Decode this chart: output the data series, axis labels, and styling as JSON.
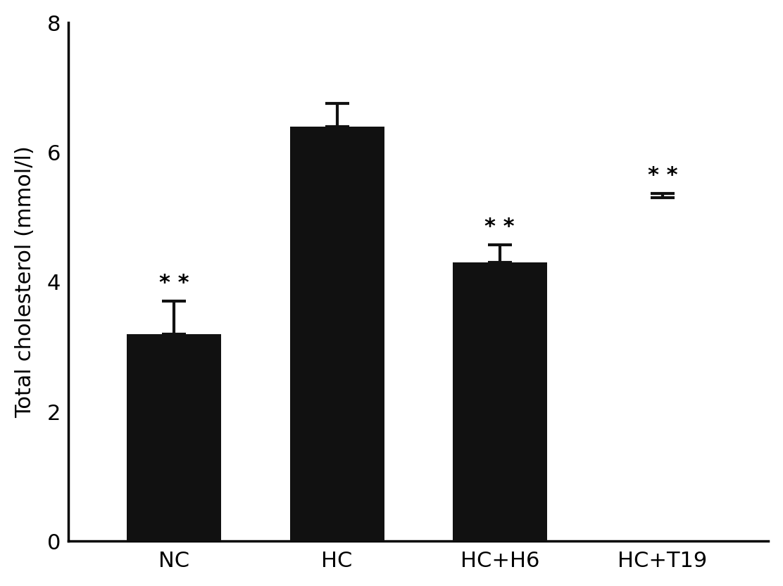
{
  "categories": [
    "NC",
    "HC",
    "HC+H6",
    "HC+T19"
  ],
  "values": [
    3.2,
    6.4,
    4.3,
    5.3
  ],
  "errors_upper": [
    0.5,
    0.35,
    0.27,
    0.07
  ],
  "bar_color": "#111111",
  "ylabel": "Total cholesterol (mmol/l)",
  "ylim": [
    0,
    8
  ],
  "yticks": [
    0,
    2,
    4,
    6,
    8
  ],
  "bar_width": 0.58,
  "significance": [
    true,
    false,
    true,
    true
  ],
  "sig_label": "* *",
  "has_bar": [
    true,
    true,
    true,
    false
  ],
  "background_color": "#ffffff",
  "figsize": [
    11.12,
    8.33
  ],
  "dpi": 100,
  "spine_linewidth": 2.5,
  "errorbar_linewidth": 3.0,
  "errorbar_capsize": 12,
  "errorbar_capthick": 3.0,
  "sig_fontsize": 22,
  "tick_fontsize": 22,
  "ylabel_fontsize": 22
}
